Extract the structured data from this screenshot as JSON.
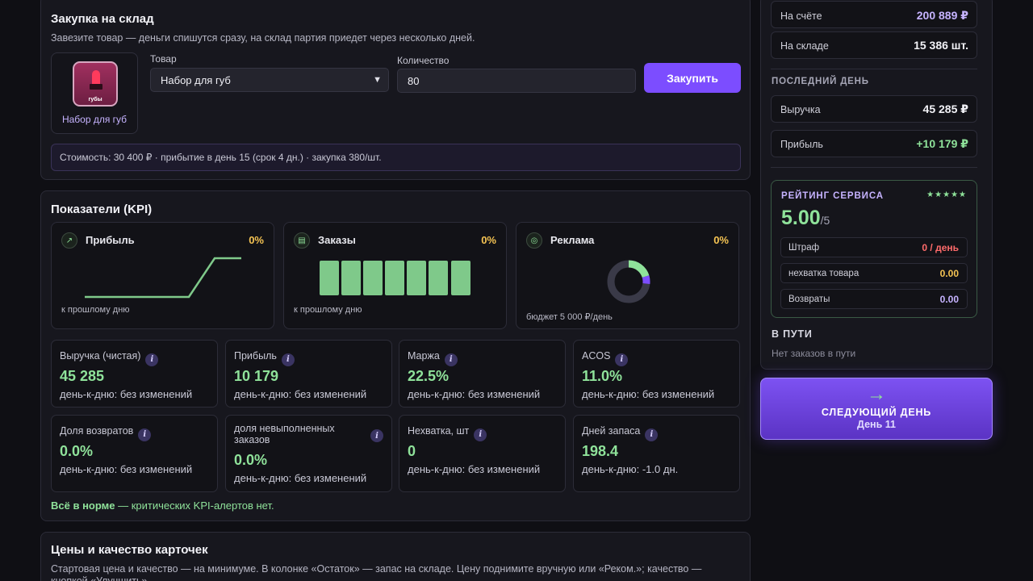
{
  "purchase": {
    "title": "Закупка на склад",
    "description": "Завезите товар — деньги спишутся сразу, на склад партия приедет через несколько дней.",
    "product_thumb_tag": "губы",
    "product_name": "Набор для губ",
    "product_label": "Товар",
    "product_selected": "Набор для губ",
    "quantity_label": "Количество",
    "quantity_value": "80",
    "buy_label": "Закупить",
    "cost_text": "Стоимость: 30 400 ₽ · прибытие в день 15 (срок 4 дн.) · закупка 380/шт."
  },
  "kpi": {
    "title": "Показатели (KPI)",
    "profit_mini": {
      "icon": "trend-up-icon",
      "title": "Прибыль",
      "pct": "0%",
      "footer": "к прошлому дню"
    },
    "orders_mini": {
      "icon": "cart-icon",
      "title": "Заказы",
      "pct": "0%",
      "footer": "к прошлому дню"
    },
    "ads_mini": {
      "icon": "target-icon",
      "title": "Реклама",
      "pct": "0%",
      "footer": "бюджет 5 000 ₽/день"
    },
    "cards": [
      {
        "label": "Выручка (чистая)",
        "value": "45 285",
        "delta": "день-к-дню: без изменений"
      },
      {
        "label": "Прибыль",
        "value": "10 179",
        "delta": "день-к-дню: без изменений"
      },
      {
        "label": "Маржа",
        "value": "22.5%",
        "delta": "день-к-дню: без изменений"
      },
      {
        "label": "ACOS",
        "value": "11.0%",
        "delta": "день-к-дню: без изменений"
      },
      {
        "label": "Доля возвратов",
        "value": "0.0%",
        "delta": "день-к-дню: без изменений"
      },
      {
        "label": "доля невыполненных заказов",
        "value": "0.0%",
        "delta": "день-к-дню: без изменений"
      },
      {
        "label": "Нехватка, шт",
        "value": "0",
        "delta": "день-к-дню: без изменений"
      },
      {
        "label": "Дней запаса",
        "value": "198.4",
        "delta": "день-к-дню: -1.0 дн."
      }
    ],
    "ok_bold": "Всё в норме",
    "ok_rest": " — критических KPI-алертов нет."
  },
  "prices": {
    "title": "Цены и качество карточек",
    "description": "Стартовая цена и качество — на минимуме. В колонке «Остаток» — запас на складе. Цену поднимите вручную или «Реком.»; качество — кнопкой «Улучшить»."
  },
  "sidebar": {
    "balance_label": "На счёте",
    "balance_value": "200 889 ₽",
    "stock_label": "На складе",
    "stock_value": "15 386 шт.",
    "last_day_title": "ПОСЛЕДНИЙ ДЕНЬ",
    "revenue_label": "Выручка",
    "revenue_value": "45 285 ₽",
    "profit_label": "Прибыль",
    "profit_value": "+10 179 ₽",
    "rating_title": "РЕЙТИНГ СЕРВИСА",
    "rating_stars": "★★★★★",
    "rating_score": "5.00",
    "rating_of": "/5",
    "penalty_label": "Штраф",
    "penalty_value": "0 / день",
    "shortage_label": "нехватка товара",
    "shortage_value": "0.00",
    "returns_label": "Возвраты",
    "returns_value": "0.00",
    "transit_title": "В ПУТИ",
    "transit_empty": "Нет заказов в пути"
  },
  "next_day": {
    "arrow": "→",
    "label": "СЛЕДУЮЩИЙ ДЕНЬ",
    "day": "День 11"
  },
  "colors": {
    "accent": "#7c4dff",
    "positive": "#8fe29a",
    "warning": "#f6c453",
    "negative": "#ff6b6b"
  }
}
